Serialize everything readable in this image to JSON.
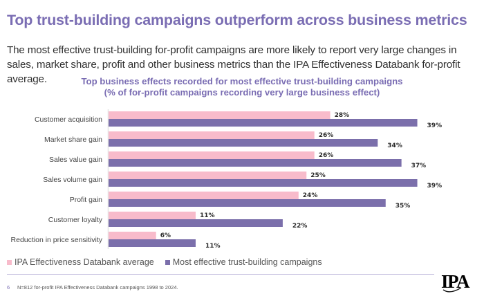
{
  "header": {
    "title": "Top trust-building campaigns outperform across business metrics",
    "subtitle": "The most effective trust-building for-profit campaigns are more likely to report very large changes in sales, market share, profit and other business metrics than the IPA Effectiveness Databank for-profit average."
  },
  "colors": {
    "accent": "#7a6db3",
    "average_series": "#f8bbcb",
    "trust_series": "#7b6fab"
  },
  "chart_data": {
    "type": "bar",
    "orientation": "horizontal",
    "title": "Top business effects recorded for most effective trust-building campaigns",
    "title_line2": "(% of for-profit campaigns recording very large business effect)",
    "xlabel": "",
    "ylabel": "",
    "xlim": [
      0,
      40
    ],
    "grid": false,
    "legend_position": "bottom-left",
    "categories": [
      "Customer acquisition",
      "Market share gain",
      "Sales value gain",
      "Sales volume gain",
      "Profit gain",
      "Customer loyalty",
      "Reduction in price sensitivity"
    ],
    "series": [
      {
        "name": "IPA Effectiveness Databank average",
        "color": "#f8bbcb",
        "values": [
          28,
          26,
          26,
          25,
          24,
          11,
          6
        ],
        "labels": [
          "28%",
          "26%",
          "26%",
          "25%",
          "24%",
          "11%",
          "6%"
        ]
      },
      {
        "name": "Most effective trust-building campaigns",
        "color": "#7b6fab",
        "values": [
          39,
          34,
          37,
          39,
          35,
          22,
          11
        ],
        "labels": [
          "39%",
          "34%",
          "37%",
          "39%",
          "35%",
          "22%",
          "11%"
        ]
      }
    ]
  },
  "footer": {
    "page_number": "6",
    "note": "N=812 for-profit IPA Effectiveness Databank campaigns 1998 to 2024.",
    "logo": "IPA"
  }
}
